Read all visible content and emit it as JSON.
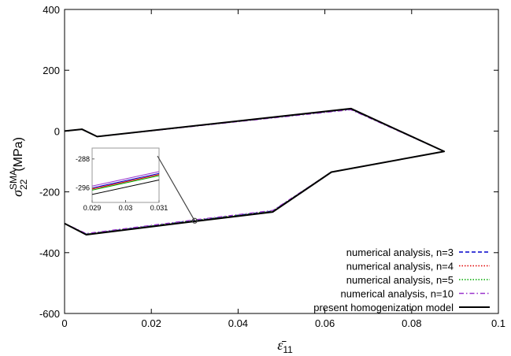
{
  "chart_data": {
    "type": "line",
    "xlabel_main": "ε̄",
    "xlabel_sub": "11",
    "ylabel_main": "σ",
    "ylabel_sub": "22",
    "ylabel_sup": "SMA",
    "ylabel_unit": "(MPa)",
    "xlim": [
      0,
      0.1
    ],
    "ylim": [
      -600,
      400
    ],
    "x_ticks": [
      0,
      0.02,
      0.04,
      0.06,
      0.08,
      0.1
    ],
    "x_tick_labels": [
      "0",
      "0.02",
      "0.04",
      "0.06",
      "0.08",
      "0.1"
    ],
    "y_ticks": [
      -600,
      -400,
      -200,
      0,
      200,
      400
    ],
    "y_tick_labels": [
      "-600",
      "-400",
      "-200",
      "0",
      "200",
      "400"
    ],
    "grid": false,
    "legend_position": "bottom-right",
    "series": [
      {
        "name": "numerical analysis, n=3",
        "color": "#0000cc",
        "dash": "dashed",
        "points": [
          [
            0,
            0
          ],
          [
            0.004,
            6
          ],
          [
            0.0075,
            -18
          ],
          [
            0.066,
            72
          ],
          [
            0.0875,
            -67
          ],
          [
            0.0615,
            -135
          ],
          [
            0.048,
            -263
          ],
          [
            0.03,
            -294
          ],
          [
            0.005,
            -339
          ],
          [
            0,
            -304
          ]
        ]
      },
      {
        "name": "numerical analysis, n=4",
        "color": "#e00000",
        "dash": "dotted",
        "points": [
          [
            0,
            0
          ],
          [
            0.004,
            6
          ],
          [
            0.0075,
            -18
          ],
          [
            0.066,
            72
          ],
          [
            0.0875,
            -67
          ],
          [
            0.0615,
            -135
          ],
          [
            0.048,
            -263
          ],
          [
            0.03,
            -294
          ],
          [
            0.005,
            -339
          ],
          [
            0,
            -304
          ]
        ]
      },
      {
        "name": "numerical analysis, n=5",
        "color": "#00aa00",
        "dash": "dotted",
        "points": [
          [
            0,
            0
          ],
          [
            0.004,
            6
          ],
          [
            0.0075,
            -18
          ],
          [
            0.066,
            72
          ],
          [
            0.0875,
            -67
          ],
          [
            0.0615,
            -135
          ],
          [
            0.048,
            -263
          ],
          [
            0.03,
            -294
          ],
          [
            0.005,
            -339
          ],
          [
            0,
            -304
          ]
        ]
      },
      {
        "name": "numerical analysis, n=10",
        "color": "#9933cc",
        "dash": "dashdot",
        "points": [
          [
            0,
            0
          ],
          [
            0.004,
            6
          ],
          [
            0.0075,
            -18
          ],
          [
            0.066,
            70
          ],
          [
            0.0875,
            -67
          ],
          [
            0.0615,
            -135
          ],
          [
            0.048,
            -261
          ],
          [
            0.03,
            -292
          ],
          [
            0.005,
            -337
          ],
          [
            0,
            -304
          ]
        ]
      },
      {
        "name": "present homogenization model",
        "color": "#000000",
        "dash": "solid",
        "points": [
          [
            0,
            0
          ],
          [
            0.004,
            6
          ],
          [
            0.0075,
            -18
          ],
          [
            0.066,
            74
          ],
          [
            0.0875,
            -67
          ],
          [
            0.0615,
            -135
          ],
          [
            0.048,
            -266
          ],
          [
            0.03,
            -297
          ],
          [
            0.005,
            -341
          ],
          [
            0,
            -304
          ]
        ]
      }
    ],
    "inset": {
      "xlim": [
        0.029,
        0.031
      ],
      "ylim": [
        -300,
        -285
      ],
      "x_ticks": [
        0.029,
        0.03,
        0.031
      ],
      "x_tick_labels": [
        "0.029",
        "0.03",
        "0.031"
      ],
      "y_ticks": [
        -288,
        -296
      ],
      "y_tick_labels": [
        "-288",
        "-296"
      ],
      "series_lines": [
        {
          "color": "#0000cc",
          "y0": -296.0,
          "y1": -292.0
        },
        {
          "color": "#e00000",
          "y0": -296.3,
          "y1": -292.3
        },
        {
          "color": "#00aa00",
          "y0": -296.6,
          "y1": -292.6
        },
        {
          "color": "#9933cc",
          "y0": -295.5,
          "y1": -291.5
        },
        {
          "color": "#000000",
          "y0": -297.8,
          "y1": -293.8
        }
      ],
      "callout_point": [
        0.03,
        -295
      ]
    }
  }
}
